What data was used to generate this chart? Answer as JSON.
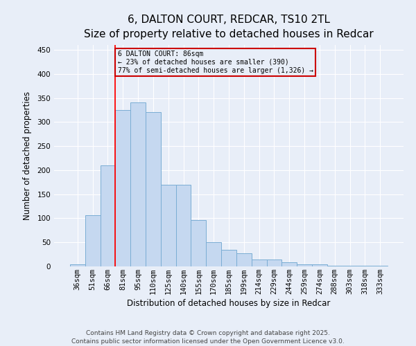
{
  "title_line1": "6, DALTON COURT, REDCAR, TS10 2TL",
  "title_line2": "Size of property relative to detached houses in Redcar",
  "xlabel": "Distribution of detached houses by size in Redcar",
  "ylabel": "Number of detached properties",
  "categories": [
    "36sqm",
    "51sqm",
    "66sqm",
    "81sqm",
    "95sqm",
    "110sqm",
    "125sqm",
    "140sqm",
    "155sqm",
    "170sqm",
    "185sqm",
    "199sqm",
    "214sqm",
    "229sqm",
    "244sqm",
    "259sqm",
    "274sqm",
    "288sqm",
    "303sqm",
    "318sqm",
    "333sqm"
  ],
  "values": [
    5,
    107,
    210,
    325,
    340,
    320,
    170,
    170,
    97,
    50,
    35,
    28,
    14,
    14,
    8,
    4,
    4,
    2,
    1,
    1,
    1
  ],
  "bar_color": "#c5d8f0",
  "bar_edge_color": "#7aadd4",
  "bar_edge_width": 0.7,
  "annotation_text": "6 DALTON COURT: 86sqm\n← 23% of detached houses are smaller (390)\n77% of semi-detached houses are larger (1,326) →",
  "annotation_box_color": "#cc0000",
  "annotation_text_color": "black",
  "vline_x_index": 2,
  "ylim": [
    0,
    460
  ],
  "yticks": [
    0,
    50,
    100,
    150,
    200,
    250,
    300,
    350,
    400,
    450
  ],
  "background_color": "#e8eef8",
  "grid_color": "#ffffff",
  "footer_line1": "Contains HM Land Registry data © Crown copyright and database right 2025.",
  "footer_line2": "Contains public sector information licensed under the Open Government Licence v3.0.",
  "title_fontsize": 11,
  "subtitle_fontsize": 10,
  "axis_label_fontsize": 8.5,
  "tick_label_fontsize": 7.5,
  "footer_fontsize": 6.5
}
